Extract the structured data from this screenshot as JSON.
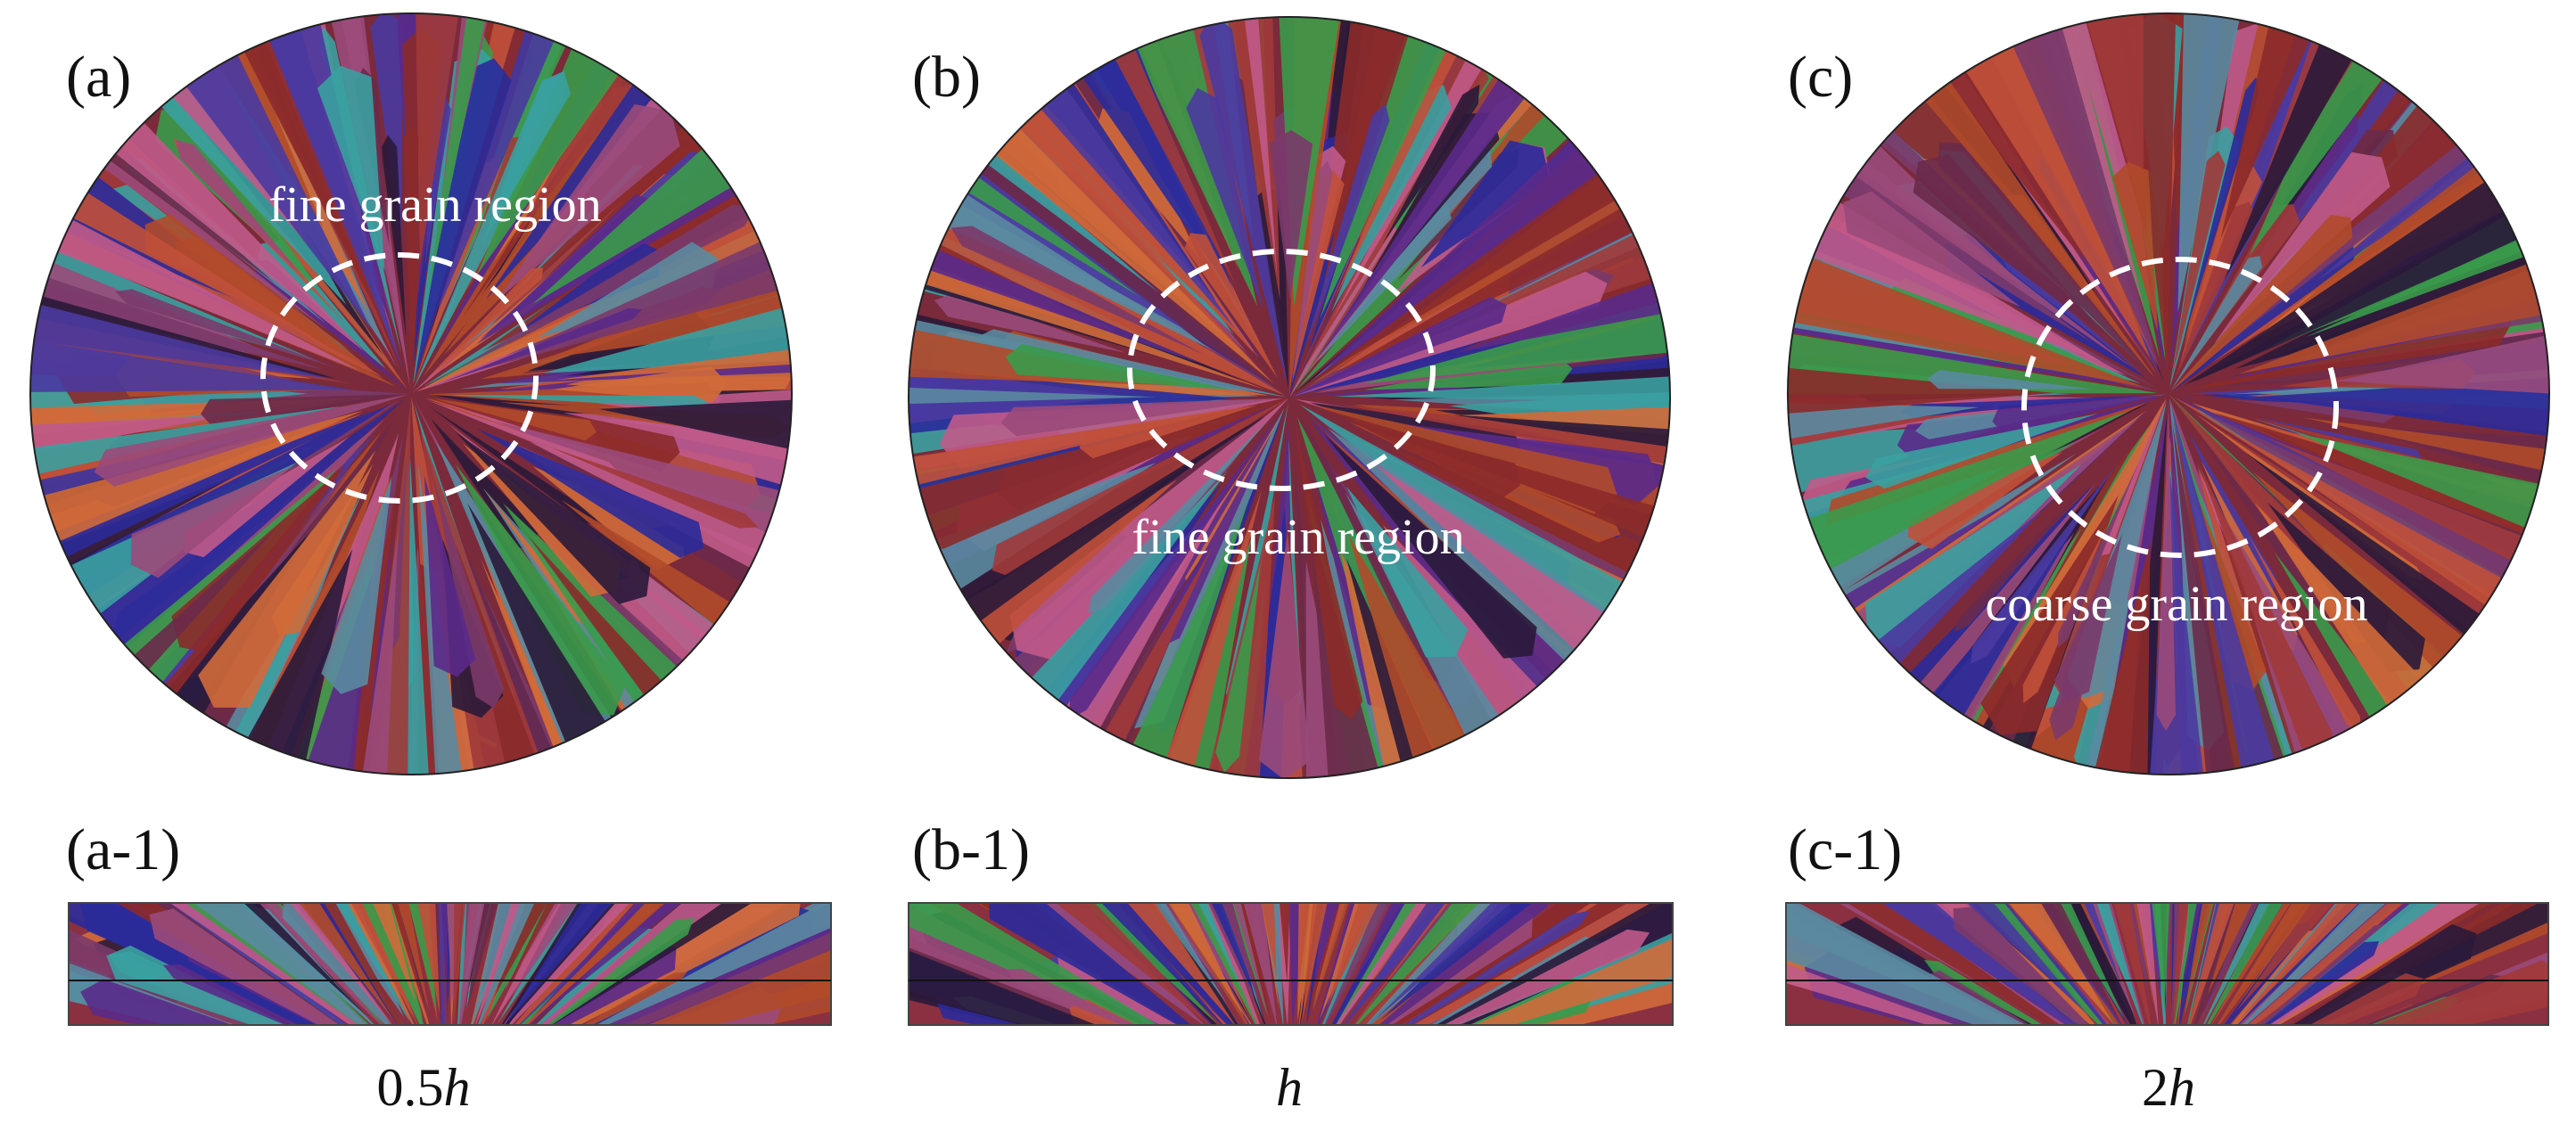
{
  "panels": [
    {
      "label": "(a)",
      "annotation": "fine grain region",
      "section_label": "(a-1)",
      "caption": {
        "prefix": "0.5",
        "variable": "h"
      }
    },
    {
      "label": "(b)",
      "annotation": "fine grain region",
      "section_label": "(b-1)",
      "caption": {
        "variable": "h"
      }
    },
    {
      "label": "(c)",
      "annotation": "coarse grain region",
      "section_label": "(c-1)",
      "caption": {
        "prefix": "2",
        "variable": "h"
      }
    }
  ]
}
